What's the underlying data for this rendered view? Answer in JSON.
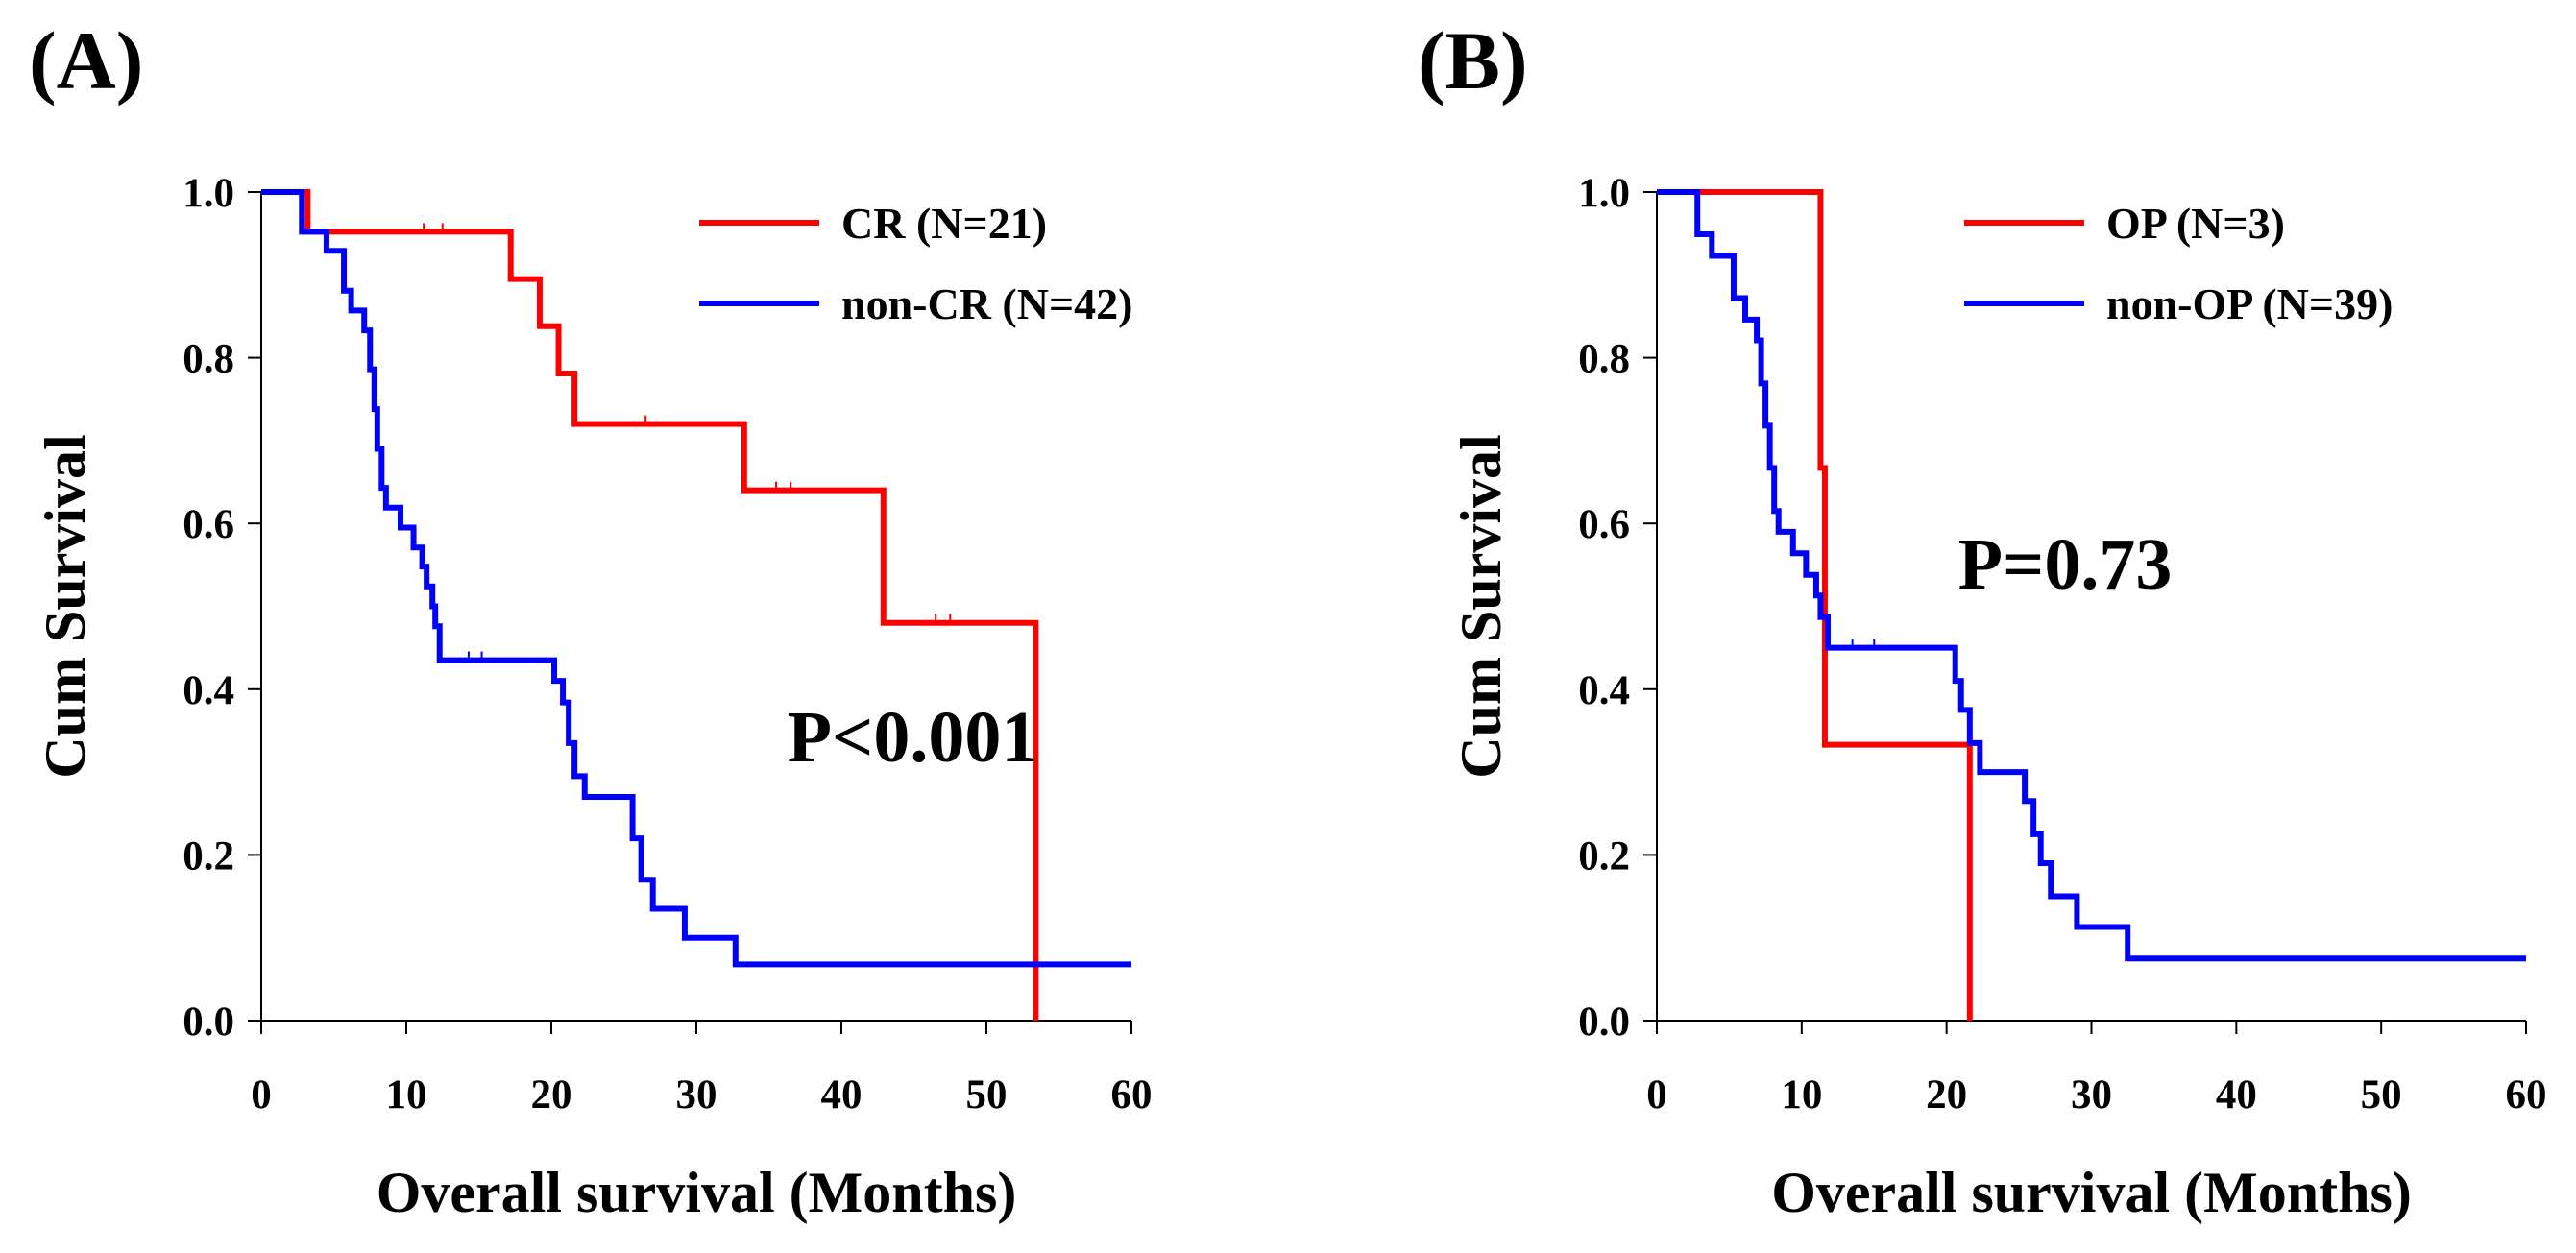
{
  "chart_data": [
    {
      "panel_label": "(A)",
      "type": "line",
      "title": "",
      "xlabel": "Overall survival (Months)",
      "ylabel": "Cum Survival",
      "xlim": [
        0,
        60
      ],
      "ylim": [
        0,
        1.0
      ],
      "xticks": [
        "0",
        "10",
        "20",
        "30",
        "40",
        "50",
        "60"
      ],
      "yticks": [
        "0.0",
        "0.2",
        "0.4",
        "0.6",
        "0.8",
        "1.0"
      ],
      "legend_position": "top-right",
      "annotation": "P<0.001",
      "colors": {
        "series_1": "#ff0000",
        "series_2": "#0000ff"
      },
      "series": [
        {
          "name": "CR (N=21)",
          "color": "#ff0000",
          "steps": [
            [
              0,
              1.0
            ],
            [
              3.2,
              0.952
            ],
            [
              17.2,
              0.895
            ],
            [
              19.2,
              0.838
            ],
            [
              20.5,
              0.781
            ],
            [
              21.6,
              0.72
            ],
            [
              33.3,
              0.64
            ],
            [
              42.9,
              0.48
            ],
            [
              53.4,
              0.0
            ]
          ],
          "x_end": 53.4,
          "censors": [
            [
              11.2,
              0.952
            ],
            [
              12.5,
              0.952
            ],
            [
              26.5,
              0.72
            ],
            [
              35.5,
              0.64
            ],
            [
              36.5,
              0.64
            ],
            [
              46.5,
              0.48
            ],
            [
              47.5,
              0.48
            ]
          ]
        },
        {
          "name": "non-CR (N=42)",
          "color": "#0000ff",
          "steps": [
            [
              0,
              1.0
            ],
            [
              2.8,
              0.952
            ],
            [
              4.5,
              0.929
            ],
            [
              5.7,
              0.881
            ],
            [
              6.2,
              0.857
            ],
            [
              7.1,
              0.833
            ],
            [
              7.5,
              0.786
            ],
            [
              7.8,
              0.738
            ],
            [
              8.0,
              0.69
            ],
            [
              8.3,
              0.643
            ],
            [
              8.6,
              0.619
            ],
            [
              9.6,
              0.595
            ],
            [
              10.5,
              0.571
            ],
            [
              11.1,
              0.548
            ],
            [
              11.4,
              0.524
            ],
            [
              11.8,
              0.5
            ],
            [
              12.0,
              0.476
            ],
            [
              12.3,
              0.435
            ],
            [
              20.2,
              0.41
            ],
            [
              20.8,
              0.384
            ],
            [
              21.2,
              0.335
            ],
            [
              21.6,
              0.295
            ],
            [
              22.3,
              0.27
            ],
            [
              25.6,
              0.22
            ],
            [
              26.2,
              0.17
            ],
            [
              27.0,
              0.135
            ],
            [
              29.2,
              0.1
            ],
            [
              32.7,
              0.068
            ]
          ],
          "x_end": 60,
          "censors": [
            [
              14.3,
              0.435
            ],
            [
              15.2,
              0.435
            ]
          ]
        }
      ]
    },
    {
      "panel_label": "(B)",
      "type": "line",
      "title": "",
      "xlabel": "Overall survival (Months)",
      "ylabel": "Cum Survival",
      "xlim": [
        0,
        60
      ],
      "ylim": [
        0,
        1.0
      ],
      "xticks": [
        "0",
        "10",
        "20",
        "30",
        "40",
        "50",
        "60"
      ],
      "yticks": [
        "0.0",
        "0.2",
        "0.4",
        "0.6",
        "0.8",
        "1.0"
      ],
      "legend_position": "top-right",
      "annotation": "P=0.73",
      "colors": {
        "series_1": "#ff0000",
        "series_2": "#0000ff"
      },
      "series": [
        {
          "name": "OP (N=3)",
          "color": "#ff0000",
          "steps": [
            [
              0,
              1.0
            ],
            [
              11.3,
              0.667
            ],
            [
              11.6,
              0.333
            ],
            [
              21.6,
              0.0
            ]
          ],
          "x_end": 21.6,
          "censors": []
        },
        {
          "name": "non-OP (N=39)",
          "color": "#0000ff",
          "steps": [
            [
              0,
              1.0
            ],
            [
              2.8,
              0.949
            ],
            [
              3.8,
              0.923
            ],
            [
              5.3,
              0.872
            ],
            [
              6.1,
              0.846
            ],
            [
              6.9,
              0.821
            ],
            [
              7.2,
              0.769
            ],
            [
              7.5,
              0.718
            ],
            [
              7.8,
              0.667
            ],
            [
              8.1,
              0.615
            ],
            [
              8.4,
              0.59
            ],
            [
              9.4,
              0.564
            ],
            [
              10.3,
              0.538
            ],
            [
              11.0,
              0.513
            ],
            [
              11.3,
              0.487
            ],
            [
              11.8,
              0.45
            ],
            [
              20.6,
              0.41
            ],
            [
              21.0,
              0.375
            ],
            [
              21.6,
              0.335
            ],
            [
              22.3,
              0.3
            ],
            [
              25.4,
              0.265
            ],
            [
              26.0,
              0.225
            ],
            [
              26.5,
              0.19
            ],
            [
              27.2,
              0.15
            ],
            [
              29.0,
              0.113
            ],
            [
              32.5,
              0.075
            ]
          ],
          "x_end": 60,
          "censors": [
            [
              13.5,
              0.45
            ],
            [
              15.0,
              0.45
            ]
          ]
        }
      ]
    }
  ]
}
